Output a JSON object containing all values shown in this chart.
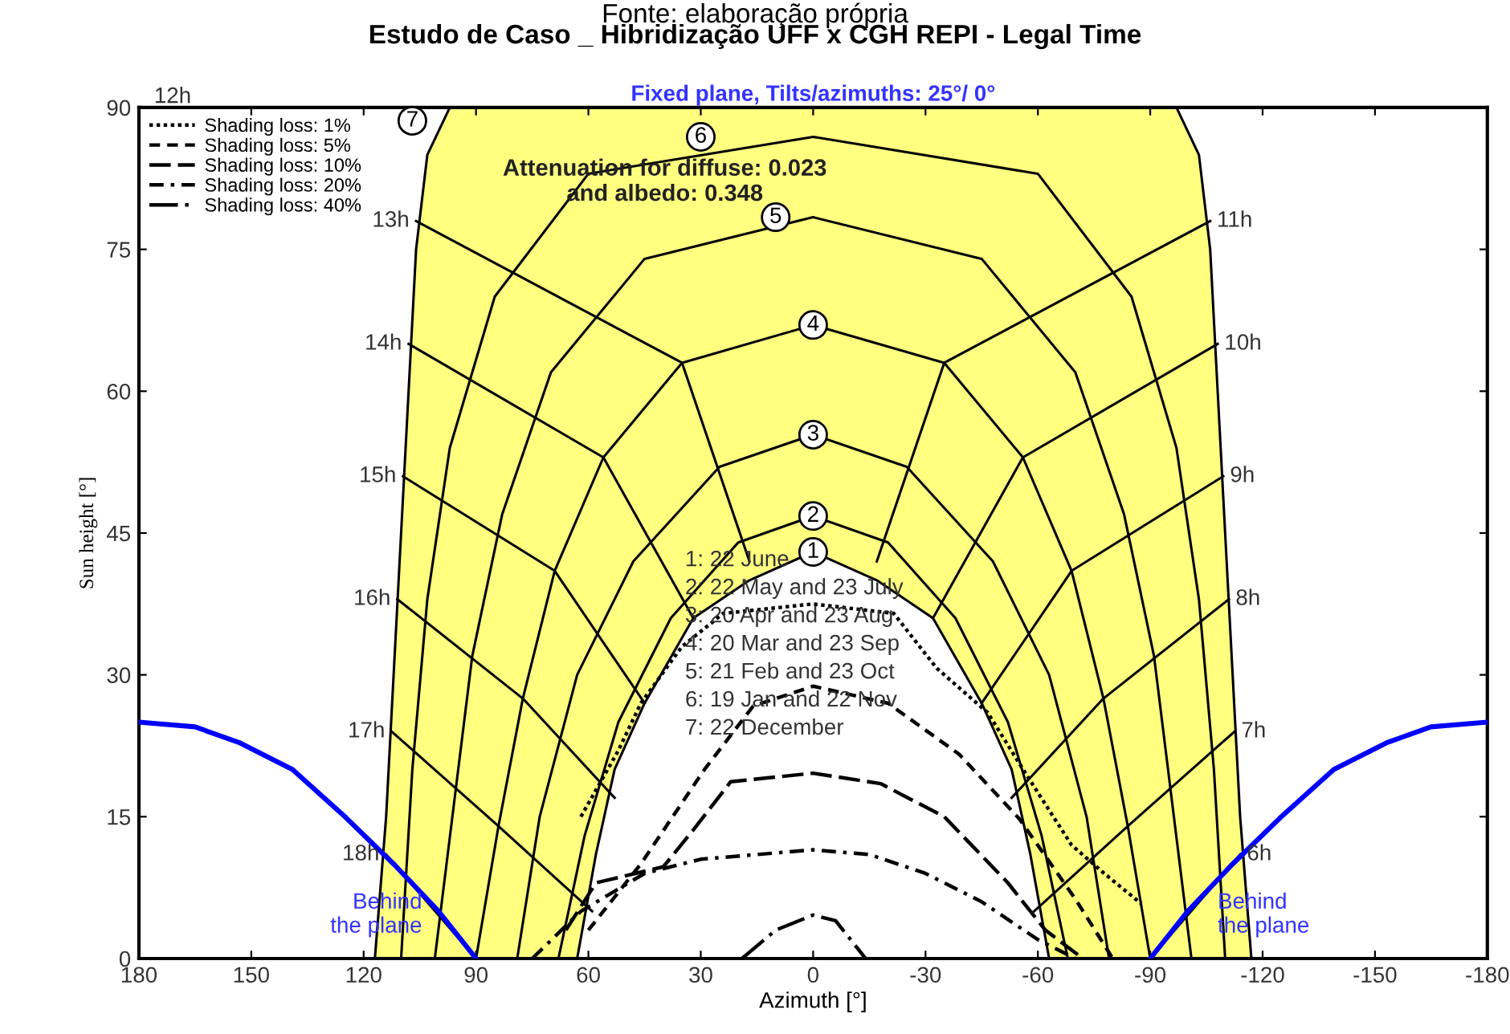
{
  "chart_data": {
    "type": "line",
    "title": "Estudo de Caso _ Hibridização UFF x CGH REPI - Legal Time",
    "subtitle": "Fixed plane, Tilts/azimuths: 25°/ 0°",
    "xlabel": "Azimuth [°]",
    "ylabel": "Sun height [°]",
    "xlim": [
      180,
      -180
    ],
    "xticks": [
      180,
      150,
      120,
      90,
      60,
      30,
      0,
      -30,
      -60,
      -90,
      -120,
      -150,
      -180
    ],
    "ylim": [
      0,
      90
    ],
    "yticks": [
      0,
      15,
      30,
      45,
      60,
      75,
      90
    ],
    "grid": false,
    "legend": "top left",
    "marker": "none",
    "series": [
      {
        "type": "area",
        "color": "#ffff80",
        "x": [
          117,
          114,
          112,
          110,
          108,
          106,
          103,
          97,
          63,
          58,
          53,
          45,
          32,
          17,
          0,
          -17,
          -32,
          -45,
          -53,
          -58,
          -63,
          -97,
          -103,
          -106,
          -108,
          -110,
          -112,
          -114,
          -117
        ],
        "values": [
          0,
          15,
          30,
          45,
          60,
          75,
          85,
          90,
          90,
          90,
          90,
          90,
          90,
          90,
          90,
          90,
          90,
          90,
          90,
          90,
          90,
          90,
          85,
          75,
          60,
          45,
          30,
          15,
          0
        ]
      },
      {
        "type": "area",
        "color": "#ffffff",
        "x": [
          63,
          58,
          53,
          45,
          32,
          17,
          0,
          -17,
          -32,
          -45,
          -53,
          -58,
          -63
        ],
        "values": [
          0,
          11,
          20,
          27,
          36,
          40,
          43,
          40,
          36,
          27,
          20,
          11,
          0
        ]
      },
      {
        "color": "#000000",
        "line_style": "solid",
        "x": [
          68,
          61,
          52,
          38,
          20,
          0,
          -20,
          -38,
          -52,
          -61,
          -68
        ],
        "values": [
          0,
          13,
          25,
          36,
          44,
          46.8,
          44,
          36,
          25,
          13,
          0
        ]
      },
      {
        "color": "#000000",
        "line_style": "solid",
        "x": [
          79,
          73,
          63,
          48,
          25,
          0,
          -25,
          -48,
          -63,
          -73,
          -79
        ],
        "values": [
          0,
          15,
          30,
          42,
          52,
          55.4,
          52,
          42,
          30,
          15,
          0
        ]
      },
      {
        "color": "#000000",
        "line_style": "solid",
        "x": [
          90,
          84,
          77.5,
          69,
          56,
          35,
          0,
          -35,
          -56,
          -69,
          -77.5,
          -84,
          -90
        ],
        "values": [
          0,
          14,
          27.5,
          41,
          53,
          63,
          67,
          63,
          53,
          41,
          27.5,
          14,
          0
        ]
      },
      {
        "color": "#000000",
        "line_style": "solid",
        "x": [
          101,
          96,
          91,
          83,
          70,
          45,
          0,
          -45,
          -70,
          -83,
          -91,
          -96,
          -101
        ],
        "values": [
          0,
          16,
          32,
          47,
          62,
          74,
          78.4,
          74,
          62,
          47,
          32,
          16,
          0
        ]
      },
      {
        "color": "#000000",
        "line_style": "solid",
        "x": [
          110,
          107,
          103,
          97,
          85,
          60,
          0,
          -60,
          -85,
          -97,
          -103,
          -107,
          -110
        ],
        "values": [
          0,
          20,
          38,
          54,
          70,
          83,
          86.9,
          83,
          70,
          54,
          38,
          20,
          0
        ]
      },
      {
        "color": "#000000",
        "line_style": "solid",
        "x": [
          106,
          35,
          17
        ],
        "values": [
          78,
          63,
          42
        ]
      },
      {
        "color": "#000000",
        "line_style": "solid",
        "x": [
          108,
          56,
          32
        ],
        "values": [
          65,
          53,
          36
        ]
      },
      {
        "color": "#000000",
        "line_style": "solid",
        "x": [
          109.5,
          69,
          45
        ],
        "values": [
          51,
          41,
          27
        ]
      },
      {
        "color": "#000000",
        "line_style": "solid",
        "x": [
          111,
          77.5,
          53
        ],
        "values": [
          38,
          27.5,
          17
        ]
      },
      {
        "color": "#000000",
        "line_style": "solid",
        "x": [
          112.5,
          84,
          59
        ],
        "values": [
          24,
          14,
          5
        ]
      },
      {
        "color": "#000000",
        "line_style": "solid",
        "x": [
          114,
          90
        ],
        "values": [
          11,
          0
        ]
      },
      {
        "color": "#000000",
        "line_style": "solid",
        "x": [
          -106,
          -35,
          -17
        ],
        "values": [
          78,
          63,
          42
        ]
      },
      {
        "color": "#000000",
        "line_style": "solid",
        "x": [
          -108,
          -56,
          -32
        ],
        "values": [
          65,
          53,
          36
        ]
      },
      {
        "color": "#000000",
        "line_style": "solid",
        "x": [
          -109.5,
          -69,
          -45
        ],
        "values": [
          51,
          41,
          27
        ]
      },
      {
        "color": "#000000",
        "line_style": "solid",
        "x": [
          -111,
          -77.5,
          -53
        ],
        "values": [
          38,
          27.5,
          17
        ]
      },
      {
        "color": "#000000",
        "line_style": "solid",
        "x": [
          -112.5,
          -84,
          -59
        ],
        "values": [
          24,
          14,
          5
        ]
      },
      {
        "color": "#000000",
        "line_style": "solid",
        "x": [
          -114,
          -90
        ],
        "values": [
          11,
          0
        ]
      },
      {
        "color": "#0000ff",
        "line_style": "solid",
        "x": [
          180,
          165,
          153,
          139,
          125,
          112,
          100,
          90
        ],
        "values": [
          25,
          24.5,
          22.8,
          20,
          15,
          10,
          5,
          0
        ]
      },
      {
        "color": "#0000ff",
        "line_style": "solid",
        "x": [
          -180,
          -165,
          -153,
          -139,
          -125,
          -112,
          -100,
          -90
        ],
        "values": [
          25,
          24.5,
          22.8,
          20,
          15,
          10,
          5,
          0
        ]
      },
      {
        "name": "Shading loss: 1%",
        "color": "#000000",
        "line_style": "dotted",
        "x": [
          62,
          52,
          46,
          35,
          24,
          0,
          -21.5,
          -33,
          -46.6,
          -57,
          -69,
          -77.7,
          -87.6
        ],
        "values": [
          15,
          22,
          27,
          33,
          36.5,
          37.5,
          36.5,
          30.7,
          26,
          19.4,
          12,
          9,
          5.8
        ]
      },
      {
        "name": "Shading loss: 5%",
        "color": "#000000",
        "line_style": "dashed",
        "x": [
          60,
          46,
          29,
          16,
          0,
          -20,
          -39,
          -55,
          -70,
          -80
        ],
        "values": [
          3,
          10,
          20,
          26.7,
          28.8,
          27,
          21.6,
          14.8,
          6.3,
          0
        ]
      },
      {
        "name": "Shading loss: 10%",
        "color": "#000000",
        "line_style": "long dashed",
        "x": [
          66,
          58,
          40,
          32,
          22,
          0,
          -18,
          -35,
          -52,
          -62,
          -72
        ],
        "values": [
          3,
          8,
          9.7,
          13.6,
          18.7,
          19.6,
          18.5,
          15,
          8,
          3,
          0
        ]
      },
      {
        "name": "Shading loss: 20%",
        "color": "#000000",
        "line_style": "dashdot",
        "x": [
          75,
          62,
          45,
          30,
          15,
          0,
          -15,
          -30,
          -45,
          -60,
          -70
        ],
        "values": [
          0,
          5,
          9,
          10.5,
          11,
          11.5,
          11,
          9,
          6,
          2,
          0
        ]
      },
      {
        "name": "Shading loss: 40%",
        "color": "#000000",
        "line_style": "long dashdot",
        "x": [
          19,
          10,
          0,
          -6,
          -14
        ],
        "values": [
          0,
          3,
          4.6,
          4,
          0
        ]
      }
    ],
    "annotations": [
      "Fonte: elaboração própria",
      "Attenuation for diffuse: 0.023\nand albedo: 0.348",
      "1: 22 June\n2: 22 May and 23 July\n3: 20 Apr and 23 Aug\n4: 20 Mar and 23 Sep\n5: 21 Feb and 23 Oct\n6: 19 Jan and 22 Nov\n7: 22 December",
      {
        "text": "1",
        "x": 0,
        "y": 43
      },
      {
        "text": "2",
        "x": 0,
        "y": 46.8
      },
      {
        "text": "3",
        "x": 0,
        "y": 55.4
      },
      {
        "text": "4",
        "x": 0,
        "y": 67
      },
      {
        "text": "5",
        "x": 10,
        "y": 78.4
      },
      {
        "text": "6",
        "x": 30,
        "y": 86.9
      },
      {
        "text": "7",
        "x": 107,
        "y": 88.6
      },
      "12h",
      {
        "text": "13h",
        "x": 106,
        "y": 78
      },
      {
        "text": "14h",
        "x": 108,
        "y": 65
      },
      {
        "text": "15h",
        "x": 109.5,
        "y": 51
      },
      {
        "text": "16h",
        "x": 111,
        "y": 38
      },
      {
        "text": "17h",
        "x": 112.5,
        "y": 24
      },
      {
        "text": "18h",
        "x": 114,
        "y": 11
      },
      {
        "text": "11h",
        "x": -106,
        "y": 78
      },
      {
        "text": "10h",
        "x": -108,
        "y": 65
      },
      {
        "text": "9h",
        "x": -109.5,
        "y": 51
      },
      {
        "text": "8h",
        "x": -111,
        "y": 38
      },
      {
        "text": "7h",
        "x": -112.5,
        "y": 24
      },
      {
        "text": "6h",
        "x": -114,
        "y": 11
      },
      "Behind\nthe plane",
      "Behind\nthe plane"
    ]
  }
}
